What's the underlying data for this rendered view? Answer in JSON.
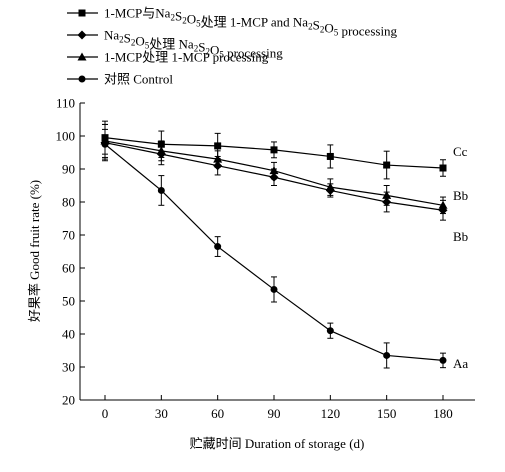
{
  "chart_data": {
    "type": "line",
    "xlabel": "贮藏时间 Duration of storage (d)",
    "ylabel": "好果率 Good fruit rate (%)",
    "x": [
      0,
      30,
      60,
      90,
      120,
      150,
      180
    ],
    "xlim": [
      0,
      180
    ],
    "ylim": [
      20,
      110
    ],
    "xticks": [
      "0",
      "30",
      "60",
      "90",
      "120",
      "150",
      "180"
    ],
    "yticks": [
      "20",
      "30",
      "40",
      "50",
      "60",
      "70",
      "80",
      "90",
      "100",
      "110"
    ],
    "grid": false,
    "legend_position": "top-left",
    "series": [
      {
        "name": "1-MCP与Na2S2O5处理 1-MCP and Na2S2O5 processing",
        "marker": "square",
        "values": [
          99.5,
          97.5,
          97.0,
          95.8,
          93.8,
          91.2,
          90.3
        ],
        "errors": [
          5.0,
          4.0,
          3.8,
          2.4,
          3.5,
          4.2,
          2.5
        ],
        "end_label": "Cc"
      },
      {
        "name": "Na2S2O5处理 Na2S2O5 processing",
        "marker": "diamond",
        "values": [
          98.0,
          94.5,
          91.0,
          87.5,
          83.5,
          80.0,
          77.5
        ],
        "errors": [
          5.5,
          3.2,
          2.8,
          2.5,
          2.0,
          3.0,
          3.0
        ],
        "end_label": "Bb"
      },
      {
        "name": "1-MCP处理 1-MCP processing",
        "marker": "triangle",
        "values": [
          98.5,
          95.5,
          93.0,
          89.5,
          84.5,
          82.0,
          79.0
        ],
        "errors": [
          5.0,
          3.0,
          2.5,
          2.5,
          2.5,
          3.0,
          2.5
        ],
        "end_label": "Bb"
      },
      {
        "name": "对照 Control",
        "marker": "circle",
        "values": [
          97.5,
          83.5,
          66.5,
          53.5,
          41.0,
          33.5,
          32.0
        ],
        "errors": [
          4.5,
          4.5,
          3.0,
          3.8,
          2.3,
          3.8,
          2.2
        ],
        "end_label": "Aa"
      }
    ],
    "legend": [
      {
        "prefix": "1-MCP与Na",
        "sub1": "2",
        "mid1": "S",
        "sub2": "2",
        "mid2": "O",
        "sub3": "5",
        "suffix": "处理 1-MCP and Na",
        "sub4": "2",
        "mid3": "S",
        "sub5": "2",
        "mid4": "O",
        "sub6": "5",
        "tail": " processing"
      },
      {
        "prefix": "Na",
        "sub1": "2",
        "mid1": "S",
        "sub2": "2",
        "mid2": "O",
        "sub3": "5",
        "suffix": "处理 Na",
        "sub4": "2",
        "mid3": "S",
        "sub5": "2",
        "mid4": "O",
        "sub6": "5",
        "tail": " processing"
      },
      {
        "text": "1-MCP处理 1-MCP processing"
      },
      {
        "text": "对照 Control"
      }
    ]
  }
}
